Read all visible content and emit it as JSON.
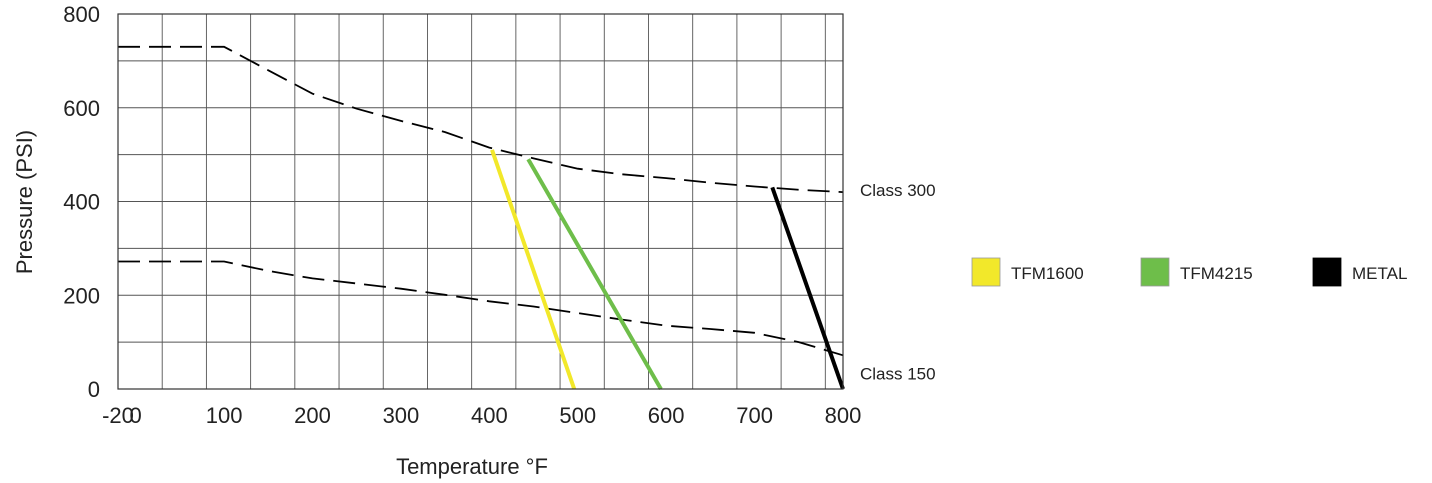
{
  "chart_data": {
    "type": "line",
    "title": "",
    "xlabel": "Temperature °F",
    "ylabel": "Pressure (PSI)",
    "xlim": [
      -20,
      800
    ],
    "ylim": [
      0,
      800
    ],
    "grid": true,
    "x_gridlines": [
      30,
      80,
      130,
      180,
      230,
      280,
      330,
      380,
      430,
      480,
      530,
      580,
      630,
      680,
      730,
      780
    ],
    "y_gridlines": [
      100,
      200,
      300,
      400,
      500,
      600,
      700
    ],
    "x_ticks": [
      {
        "value": -20,
        "label": "-20"
      },
      {
        "value": 0,
        "label": "0"
      },
      {
        "value": 100,
        "label": "100"
      },
      {
        "value": 200,
        "label": "200"
      },
      {
        "value": 300,
        "label": "300"
      },
      {
        "value": 400,
        "label": "400"
      },
      {
        "value": 500,
        "label": "500"
      },
      {
        "value": 600,
        "label": "600"
      },
      {
        "value": 700,
        "label": "700"
      },
      {
        "value": 800,
        "label": "800"
      }
    ],
    "y_ticks": [
      {
        "value": 0,
        "label": "0"
      },
      {
        "value": 200,
        "label": "200"
      },
      {
        "value": 400,
        "label": "400"
      },
      {
        "value": 600,
        "label": "600"
      },
      {
        "value": 800,
        "label": "800"
      }
    ],
    "rating_curves": [
      {
        "label": "Class 300",
        "style": "dashed",
        "color": "#000000",
        "points": [
          [
            -20,
            730
          ],
          [
            100,
            730
          ],
          [
            150,
            680
          ],
          [
            200,
            630
          ],
          [
            250,
            598
          ],
          [
            300,
            572
          ],
          [
            350,
            548
          ],
          [
            400,
            515
          ],
          [
            450,
            492
          ],
          [
            500,
            470
          ],
          [
            550,
            458
          ],
          [
            600,
            450
          ],
          [
            650,
            440
          ],
          [
            700,
            432
          ],
          [
            750,
            425
          ],
          [
            800,
            420
          ]
        ]
      },
      {
        "label": "Class 150",
        "style": "dashed",
        "color": "#000000",
        "points": [
          [
            -20,
            272
          ],
          [
            100,
            272
          ],
          [
            150,
            252
          ],
          [
            200,
            236
          ],
          [
            250,
            225
          ],
          [
            300,
            214
          ],
          [
            350,
            201
          ],
          [
            400,
            187
          ],
          [
            450,
            176
          ],
          [
            500,
            162
          ],
          [
            550,
            148
          ],
          [
            600,
            135
          ],
          [
            650,
            128
          ],
          [
            700,
            120
          ],
          [
            750,
            100
          ],
          [
            800,
            72
          ]
        ]
      }
    ],
    "series": [
      {
        "name": "TFM1600",
        "color": "#f2e82a",
        "points": [
          [
            403,
            510
          ],
          [
            496,
            0
          ]
        ]
      },
      {
        "name": "TFM4215",
        "color": "#6ebe4a",
        "points": [
          [
            444,
            490
          ],
          [
            594,
            0
          ]
        ]
      },
      {
        "name": "METAL",
        "color": "#000000",
        "points": [
          [
            720,
            430
          ],
          [
            800,
            0
          ]
        ]
      }
    ],
    "legend_position": "right"
  }
}
